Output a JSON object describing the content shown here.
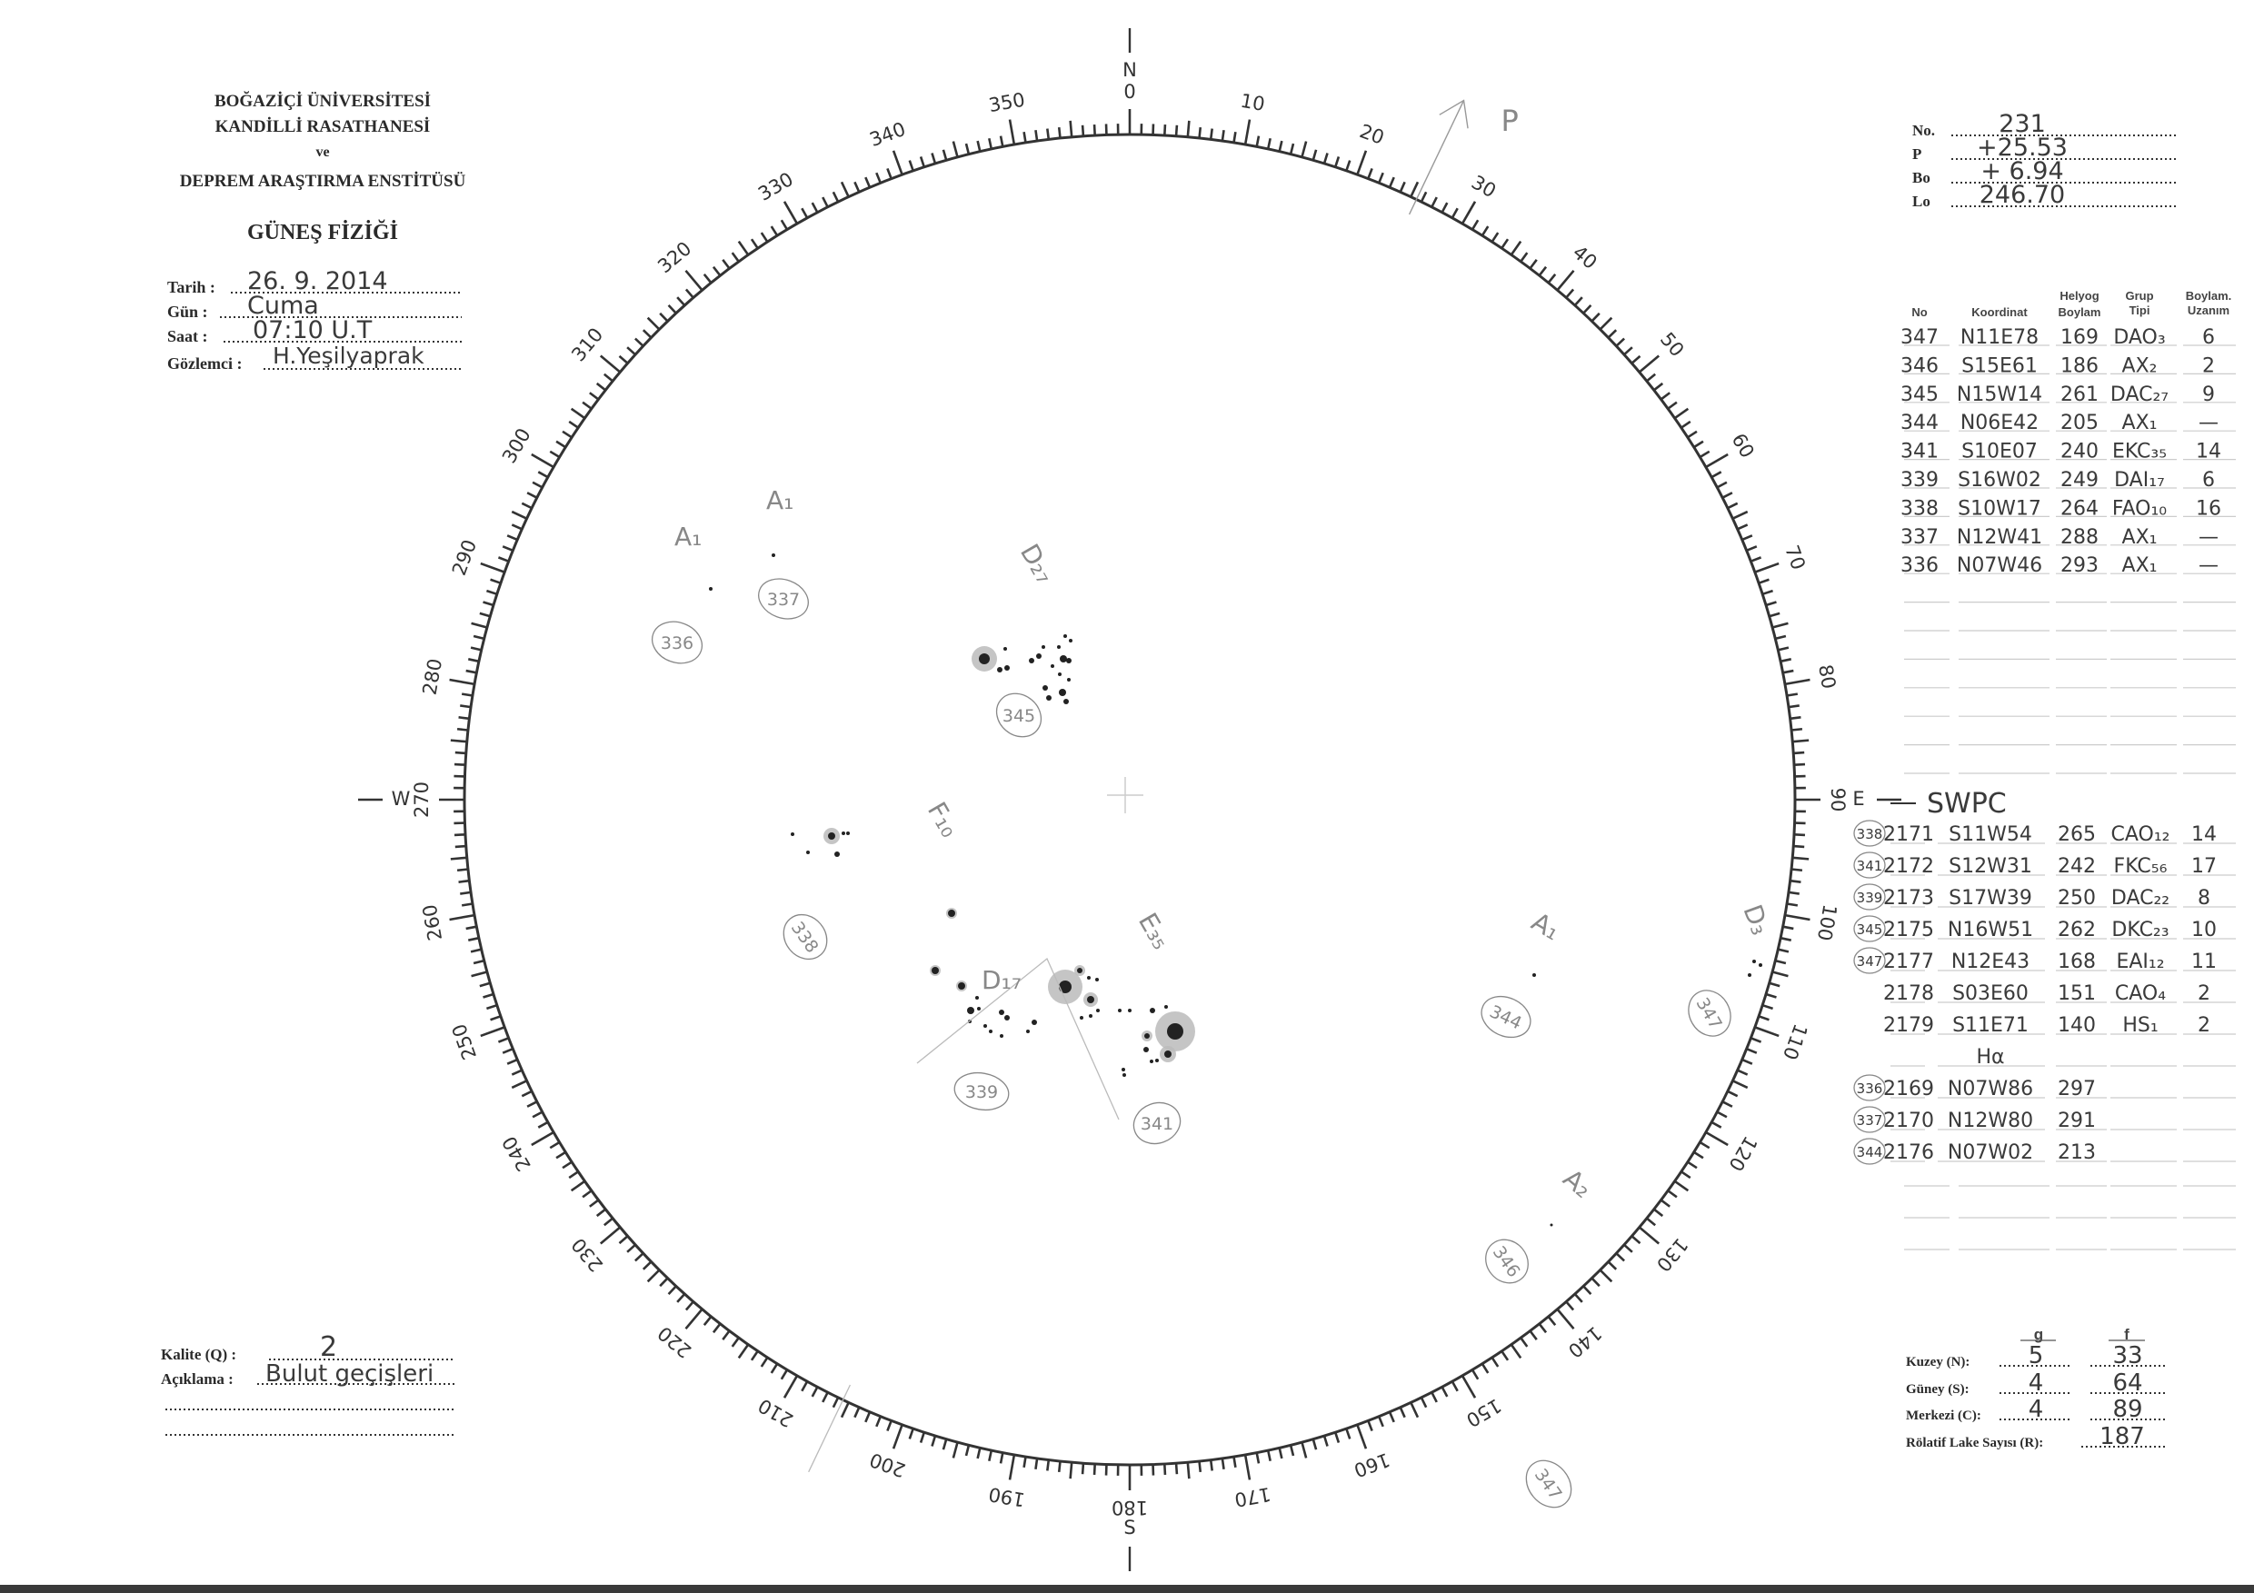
{
  "header": {
    "institution_line1": "BOĞAZİÇİ ÜNİVERSİTESİ",
    "institution_line2": "KANDİLLİ RASATHANESİ",
    "institution_line3": "ve",
    "institution_line4": "DEPREM ARAŞTIRMA ENSTİTÜSÜ",
    "department": "GÜNEŞ FİZİĞİ"
  },
  "observation": {
    "date_label": "Tarih :",
    "date_value": "26. 9. 2014",
    "day_label": "Gün :",
    "day_value": "Cuma",
    "time_label": "Saat :",
    "time_value": "07:10 U.T",
    "observer_label": "Gözlemci :",
    "observer_value": "H.Yeşilyaprak"
  },
  "ephemeris": {
    "no_label": "No.",
    "no_value": "231",
    "p_label": "P",
    "p_value": "+25.53",
    "bo_label": "Bo",
    "bo_value": "+ 6.94",
    "lo_label": "Lo",
    "lo_value": "246.70"
  },
  "groups_table": {
    "headers": {
      "no": "No",
      "coord": "Koordinat",
      "helyog": [
        "Helyog",
        "Boylam"
      ],
      "grup": [
        "Grup",
        "Tipi"
      ],
      "uzanim": [
        "Boylam.",
        "Uzanım"
      ]
    },
    "rows": [
      {
        "no": "347",
        "coord": "N11E78",
        "helyog": "169",
        "grup": "DAO₃",
        "uzanim": "6"
      },
      {
        "no": "346",
        "coord": "S15E61",
        "helyog": "186",
        "grup": "AX₂",
        "uzanim": "2"
      },
      {
        "no": "345",
        "coord": "N15W14",
        "helyog": "261",
        "grup": "DAC₂₇",
        "uzanim": "9"
      },
      {
        "no": "344",
        "coord": "N06E42",
        "helyog": "205",
        "grup": "AX₁",
        "uzanim": "—"
      },
      {
        "no": "341",
        "coord": "S10E07",
        "helyog": "240",
        "grup": "EKC₃₅",
        "uzanim": "14"
      },
      {
        "no": "339",
        "coord": "S16W02",
        "helyog": "249",
        "grup": "DAI₁₇",
        "uzanim": "6"
      },
      {
        "no": "338",
        "coord": "S10W17",
        "helyog": "264",
        "grup": "FAO₁₀",
        "uzanim": "16"
      },
      {
        "no": "337",
        "coord": "N12W41",
        "helyog": "288",
        "grup": "AX₁",
        "uzanim": "—"
      },
      {
        "no": "336",
        "coord": "N07W46",
        "helyog": "293",
        "grup": "AX₁",
        "uzanim": "—"
      }
    ]
  },
  "swpc": {
    "title": "SWPC",
    "rows": [
      {
        "ref": "338",
        "no": "2171",
        "coord": "S11W54",
        "helyog": "265",
        "grup": "CAO₁₂",
        "uzanim": "14"
      },
      {
        "ref": "341",
        "no": "2172",
        "coord": "S12W31",
        "helyog": "242",
        "grup": "FKC₅₆",
        "uzanim": "17"
      },
      {
        "ref": "339",
        "no": "2173",
        "coord": "S17W39",
        "helyog": "250",
        "grup": "DAC₂₂",
        "uzanim": "8"
      },
      {
        "ref": "345",
        "no": "2175",
        "coord": "N16W51",
        "helyog": "262",
        "grup": "DKC₂₃",
        "uzanim": "10"
      },
      {
        "ref": "347",
        "no": "2177",
        "coord": "N12E43",
        "helyog": "168",
        "grup": "EAI₁₂",
        "uzanim": "11"
      },
      {
        "ref": "",
        "no": "2178",
        "coord": "S03E60",
        "helyog": "151",
        "grup": "CAO₄",
        "uzanim": "2"
      },
      {
        "ref": "",
        "no": "2179",
        "coord": "S11E71",
        "helyog": "140",
        "grup": "HS₁",
        "uzanim": "2"
      },
      {
        "ref": "",
        "no": "",
        "coord": "Hα",
        "helyog": "",
        "grup": "",
        "uzanim": ""
      },
      {
        "ref": "336",
        "no": "2169",
        "coord": "N07W86",
        "helyog": "297",
        "grup": "",
        "uzanim": ""
      },
      {
        "ref": "337",
        "no": "2170",
        "coord": "N12W80",
        "helyog": "291",
        "grup": "",
        "uzanim": ""
      },
      {
        "ref": "344",
        "no": "2176",
        "coord": "N07W02",
        "helyog": "213",
        "grup": "",
        "uzanim": ""
      }
    ]
  },
  "dial": {
    "labels": [
      "0",
      "10",
      "20",
      "30",
      "40",
      "50",
      "60",
      "70",
      "80",
      "90",
      "100",
      "110",
      "120",
      "130",
      "140",
      "150",
      "160",
      "170",
      "180",
      "190",
      "200",
      "210",
      "220",
      "230",
      "240",
      "250",
      "260",
      "270",
      "280",
      "290",
      "300",
      "310",
      "320",
      "330",
      "340",
      "350"
    ],
    "north": "N",
    "east": "E",
    "south": "S",
    "west": "W",
    "p_axis_label": "P",
    "p_angle_deg": 25.53
  },
  "disk_annotations": {
    "g336_type": "A₁",
    "g336_no": "336",
    "g337_type": "A₁",
    "g337_no": "337",
    "g345_type": "D₂₇",
    "g345_no": "345",
    "g338_type": "F₁₀",
    "g338_no": "338",
    "g339_type": "D₁₇",
    "g339_no": "339",
    "g341_type": "E₃₅",
    "g341_no": "341",
    "g344_type": "A₁",
    "g344_no": "344",
    "g347_type": "D₃",
    "g347_no": "347",
    "g346_type": "A₂",
    "g346_no": "346",
    "outside_no": "347"
  },
  "quality": {
    "kalite_label": "Kalite (Q) :",
    "kalite_value": "2",
    "aciklama_label": "Açıklama :",
    "aciklama_value": "Bulut geçişleri"
  },
  "counts": {
    "g_header": "g",
    "f_header": "f",
    "north_label": "Kuzey (N):",
    "north_g": "5",
    "north_f": "33",
    "south_label": "Güney (S):",
    "south_g": "4",
    "south_f": "64",
    "center_label": "Merkezi (C):",
    "center_g": "4",
    "center_f": "89",
    "r_label": "Rölatif Lake Sayısı (R):",
    "r_value": "187"
  }
}
